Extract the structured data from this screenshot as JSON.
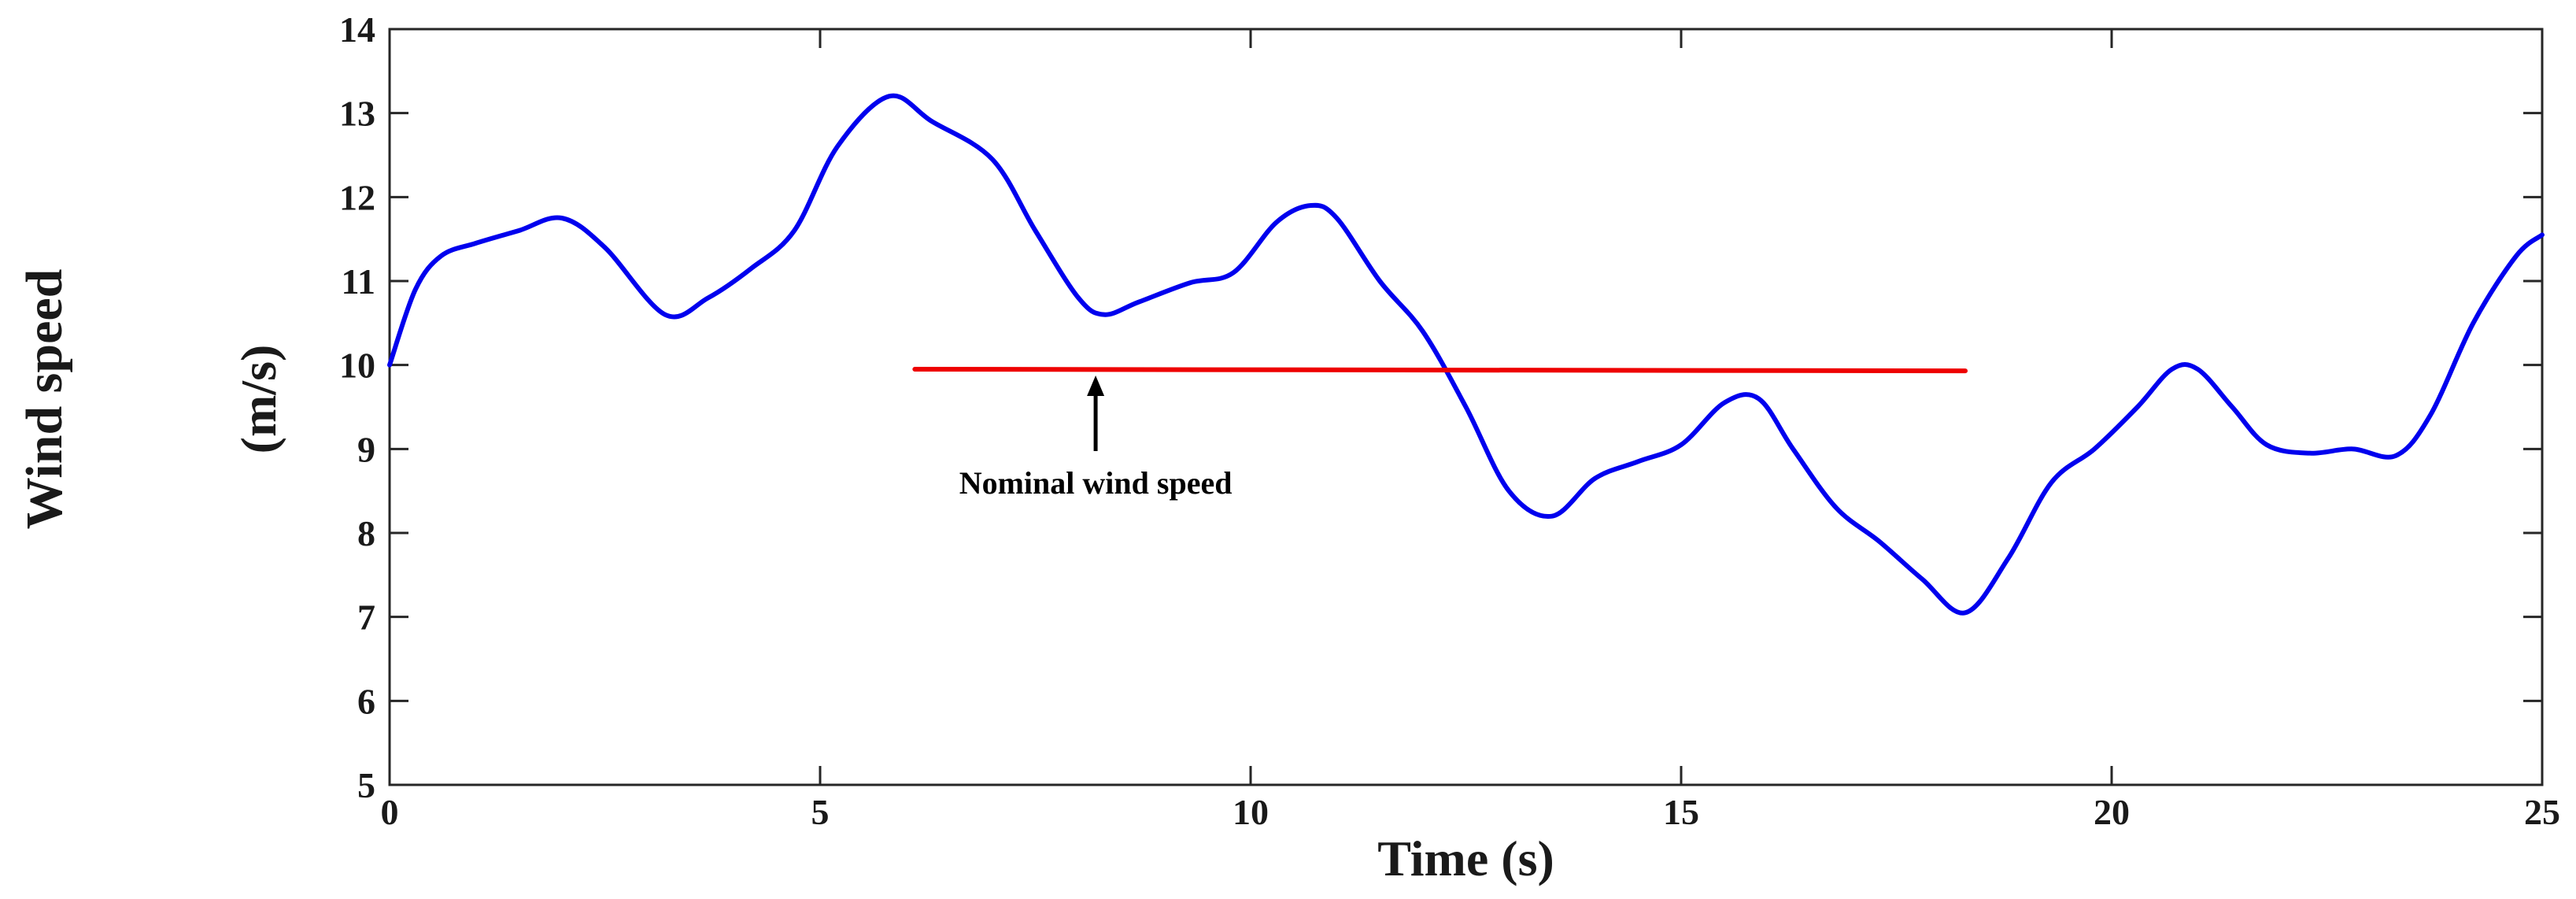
{
  "chart_data": {
    "type": "line",
    "title": "",
    "xlabel": "Time (s)",
    "ylabel": "Wind speed",
    "ylabel_unit": "(m/s)",
    "xlim": [
      0,
      25
    ],
    "ylim": [
      5,
      14
    ],
    "xticks": [
      0,
      5,
      10,
      15,
      20,
      25
    ],
    "yticks": [
      5,
      6,
      7,
      8,
      9,
      10,
      11,
      12,
      13,
      14
    ],
    "grid": false,
    "series": [
      {
        "color": "#0000ee",
        "x": [
          0,
          0.3,
          0.6,
          1.0,
          1.5,
          2.0,
          2.5,
          3.2,
          3.7,
          4.2,
          4.7,
          5.2,
          5.8,
          6.3,
          7.0,
          7.5,
          8.0,
          8.3,
          8.7,
          9.3,
          9.8,
          10.3,
          10.7,
          11.0,
          11.5,
          12.0,
          12.5,
          13.0,
          13.5,
          14.0,
          14.5,
          15.0,
          15.5,
          15.9,
          16.3,
          16.8,
          17.3,
          17.8,
          18.3,
          18.8,
          19.3,
          19.8,
          20.3,
          20.7,
          21.0,
          21.4,
          21.8,
          22.3,
          22.8,
          23.3,
          23.7,
          24.2,
          24.7,
          25.0
        ],
        "y": [
          10.0,
          10.9,
          11.3,
          11.45,
          11.6,
          11.75,
          11.4,
          10.6,
          10.8,
          11.15,
          11.6,
          12.6,
          13.2,
          12.9,
          12.45,
          11.6,
          10.8,
          10.6,
          10.75,
          10.98,
          11.1,
          11.7,
          11.9,
          11.75,
          11.0,
          10.4,
          9.5,
          8.5,
          8.2,
          8.65,
          8.85,
          9.05,
          9.55,
          9.6,
          9.0,
          8.3,
          7.9,
          7.45,
          7.05,
          7.7,
          8.6,
          9.0,
          9.5,
          9.95,
          9.95,
          9.5,
          9.05,
          8.95,
          9.0,
          8.92,
          9.4,
          10.5,
          11.3,
          11.55
        ]
      },
      {
        "color": "#ee0000",
        "x": [
          6.1,
          18.3
        ],
        "y": [
          9.95,
          9.93
        ]
      }
    ],
    "annotations": [
      {
        "text": "Nominal wind speed",
        "x": 8.2,
        "y": 9.95,
        "label_y": 8.6
      }
    ]
  }
}
